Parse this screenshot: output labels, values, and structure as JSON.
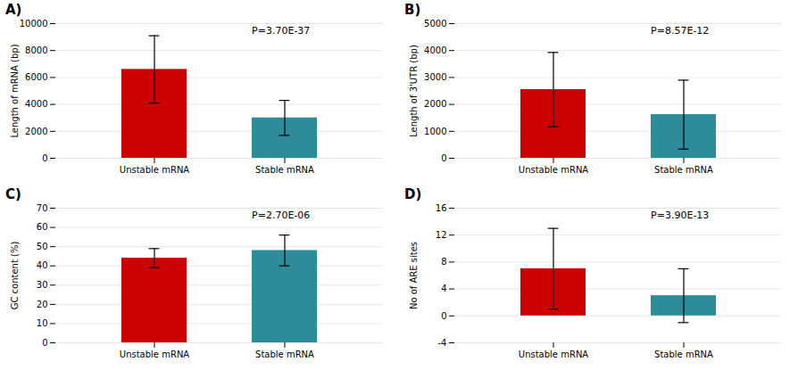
{
  "chart_data": [
    {
      "type": "bar",
      "title": "A)",
      "ylabel": "Length of mRNA (bp)",
      "annotations": [
        "P=3.70E-37"
      ],
      "categories": [
        "Unstable mRNA",
        "Stable mRNA"
      ],
      "values": [
        6600,
        3000
      ],
      "errors": [
        2500,
        1300
      ],
      "colors": [
        "#cc0000",
        "#2e8b9a"
      ],
      "ylim": [
        0,
        10000
      ],
      "yticks": [
        0,
        2000,
        4000,
        6000,
        8000,
        10000
      ],
      "grid": true
    },
    {
      "type": "bar",
      "title": "B)",
      "ylabel": "Length of 3'UTR (bp)",
      "annotations": [
        "P=8.57E-12"
      ],
      "categories": [
        "Unstable mRNA",
        "Stable mRNA"
      ],
      "values": [
        2550,
        1620
      ],
      "errors": [
        1380,
        1280
      ],
      "colors": [
        "#cc0000",
        "#2e8b9a"
      ],
      "ylim": [
        0,
        5000
      ],
      "yticks": [
        0,
        1000,
        2000,
        3000,
        4000,
        5000
      ],
      "grid": true
    },
    {
      "type": "bar",
      "title": "C)",
      "ylabel": "GC content (%)",
      "annotations": [
        "P=2.70E-06"
      ],
      "categories": [
        "Unstable mRNA",
        "Stable mRNA"
      ],
      "values": [
        44,
        48
      ],
      "errors": [
        5,
        8
      ],
      "colors": [
        "#cc0000",
        "#2e8b9a"
      ],
      "ylim": [
        0,
        70
      ],
      "yticks": [
        0,
        10,
        20,
        30,
        40,
        50,
        60,
        70
      ],
      "grid": true
    },
    {
      "type": "bar",
      "title": "D)",
      "ylabel": "No of ARE sites",
      "annotations": [
        "P=3.90E-13"
      ],
      "categories": [
        "Unstable mRNA",
        "Stable mRNA"
      ],
      "values": [
        7,
        3
      ],
      "errors": [
        6,
        4
      ],
      "colors": [
        "#cc0000",
        "#2e8b9a"
      ],
      "ylim": [
        -4,
        16
      ],
      "yticks": [
        -4,
        0,
        4,
        8,
        12,
        16
      ],
      "grid": true
    }
  ]
}
